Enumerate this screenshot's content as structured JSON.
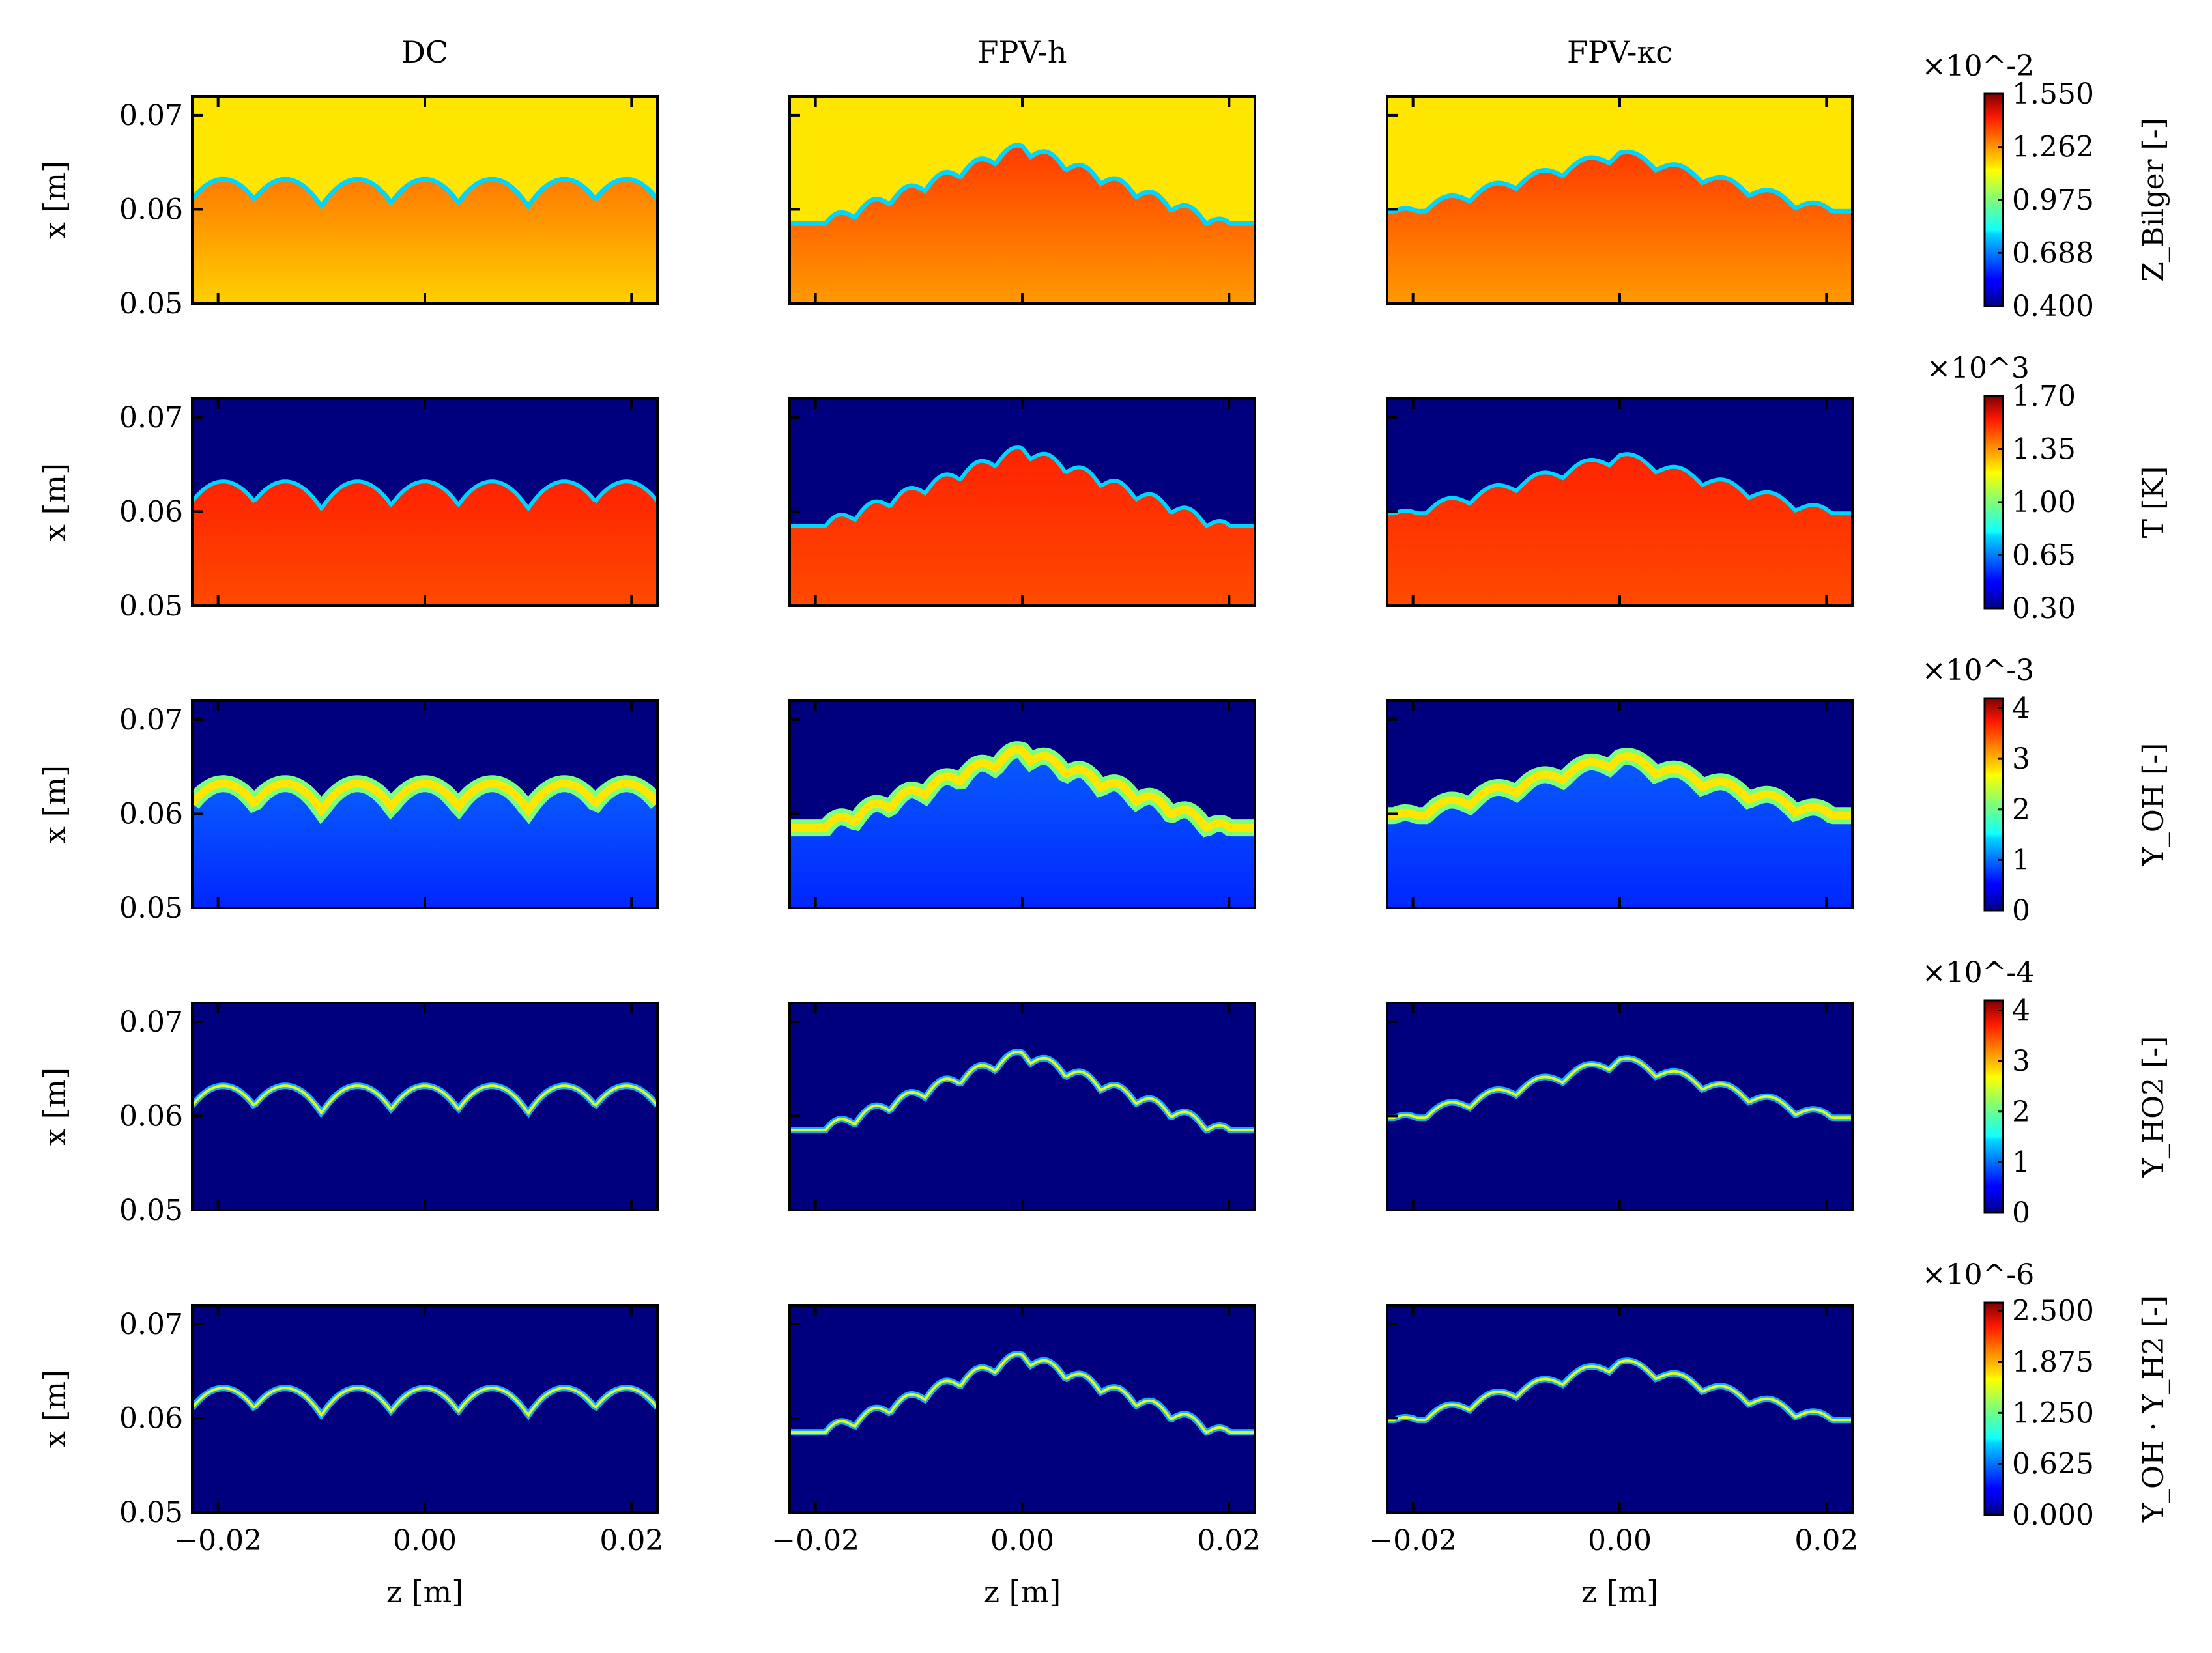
{
  "chart_data": {
    "type": "heatmap",
    "columns": [
      "DC",
      "FPV-h",
      "FPV-κc"
    ],
    "xlabel": "z [m]",
    "ylabel": "x [m]",
    "xlim": [
      -0.0225,
      0.0225
    ],
    "ylim": [
      0.05,
      0.072
    ],
    "x_ticks": [
      -0.02,
      0.0,
      0.02
    ],
    "x_tick_labels": [
      "−0.02",
      "0.00",
      "0.02"
    ],
    "y_ticks": [
      0.05,
      0.06,
      0.07
    ],
    "y_tick_labels": [
      "0.05",
      "0.06",
      "0.07"
    ],
    "colormap": "jet",
    "fields": [
      {
        "key": "zbilger",
        "label": "Z_Bilger [-]",
        "multiplier": "×10^-2",
        "ticks": [
          0.4,
          0.688,
          0.975,
          1.262,
          1.55
        ],
        "tick_labels": [
          "0.400",
          "0.688",
          "0.975",
          "1.262",
          "1.550"
        ],
        "range": [
          0.4,
          1.55
        ]
      },
      {
        "key": "T",
        "label": "T [K]",
        "multiplier": "×10^3",
        "ticks": [
          0.3,
          0.65,
          1.0,
          1.35,
          1.7
        ],
        "tick_labels": [
          "0.30",
          "0.65",
          "1.00",
          "1.35",
          "1.70"
        ],
        "range": [
          0.3,
          1.7
        ]
      },
      {
        "key": "YOH",
        "label": "Y_OH [-]",
        "multiplier": "×10^-3",
        "ticks": [
          0,
          1,
          2,
          3,
          4
        ],
        "tick_labels": [
          "0",
          "1",
          "2",
          "3",
          "4"
        ],
        "range": [
          0,
          4.2
        ]
      },
      {
        "key": "YHO2",
        "label": "Y_HO2 [-]",
        "multiplier": "×10^-4",
        "ticks": [
          0,
          1,
          2,
          3,
          4
        ],
        "tick_labels": [
          "0",
          "1",
          "2",
          "3",
          "4"
        ],
        "range": [
          0,
          4.2
        ]
      },
      {
        "key": "YOHYH2",
        "label": "Y_OH · Y_H2 [-]",
        "multiplier": "×10^-6",
        "ticks": [
          0.0,
          0.625,
          1.25,
          1.875,
          2.5
        ],
        "tick_labels": [
          "0.000",
          "0.625",
          "1.250",
          "1.875",
          "2.500"
        ],
        "range": [
          0,
          2.6
        ]
      }
    ]
  },
  "colors": {
    "background_yellow": "#ffe600",
    "background_blue": "#00007f",
    "burned_red": "#ff2a00",
    "front_cyan": "#00d4ff"
  }
}
